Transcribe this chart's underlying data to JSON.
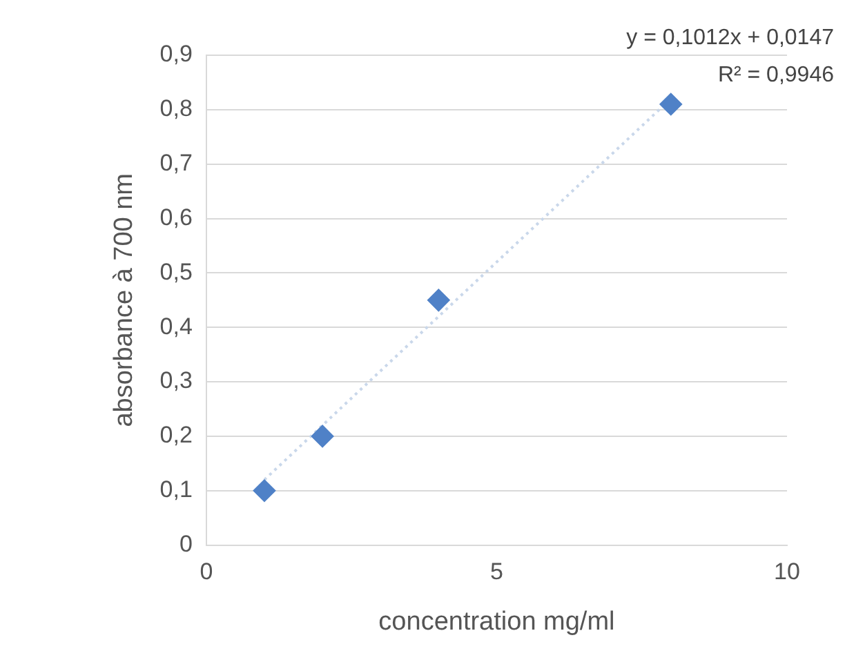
{
  "chart_data": {
    "type": "scatter",
    "xlabel": "concentration mg/ml",
    "ylabel": "absorbance à 700 nm",
    "series": [
      {
        "color": "#4f81c7",
        "x": [
          1,
          2,
          4,
          8
        ],
        "values": [
          0.1,
          0.2,
          0.45,
          0.81
        ],
        "marker": "diamond"
      },
      {
        "type": "line",
        "color": "#c9d7ea",
        "x": [
          1,
          8
        ],
        "values": [
          0.12,
          0.82
        ],
        "line_style": "dotted",
        "marker": "none"
      }
    ],
    "xlim": [
      0,
      10
    ],
    "xticks": [
      0,
      5,
      10
    ],
    "ylim": [
      0,
      0.9
    ],
    "yticks": [
      0,
      {
        "value": 0.1,
        "label": "0,1"
      },
      {
        "value": 0.2,
        "label": "0,2"
      },
      {
        "value": 0.3,
        "label": "0,3"
      },
      {
        "value": 0.4,
        "label": "0,4"
      },
      {
        "value": 0.5,
        "label": "0,5"
      },
      {
        "value": 0.6,
        "label": "0,6"
      },
      {
        "value": 0.7,
        "label": "0,7"
      },
      {
        "value": 0.8,
        "label": "0,8"
      },
      {
        "value": 0.9,
        "label": "0,9"
      }
    ],
    "grid": "y",
    "legend": false,
    "annotations": [
      "y = 0,1012x + 0,0147",
      "R² = 0,9946"
    ]
  }
}
